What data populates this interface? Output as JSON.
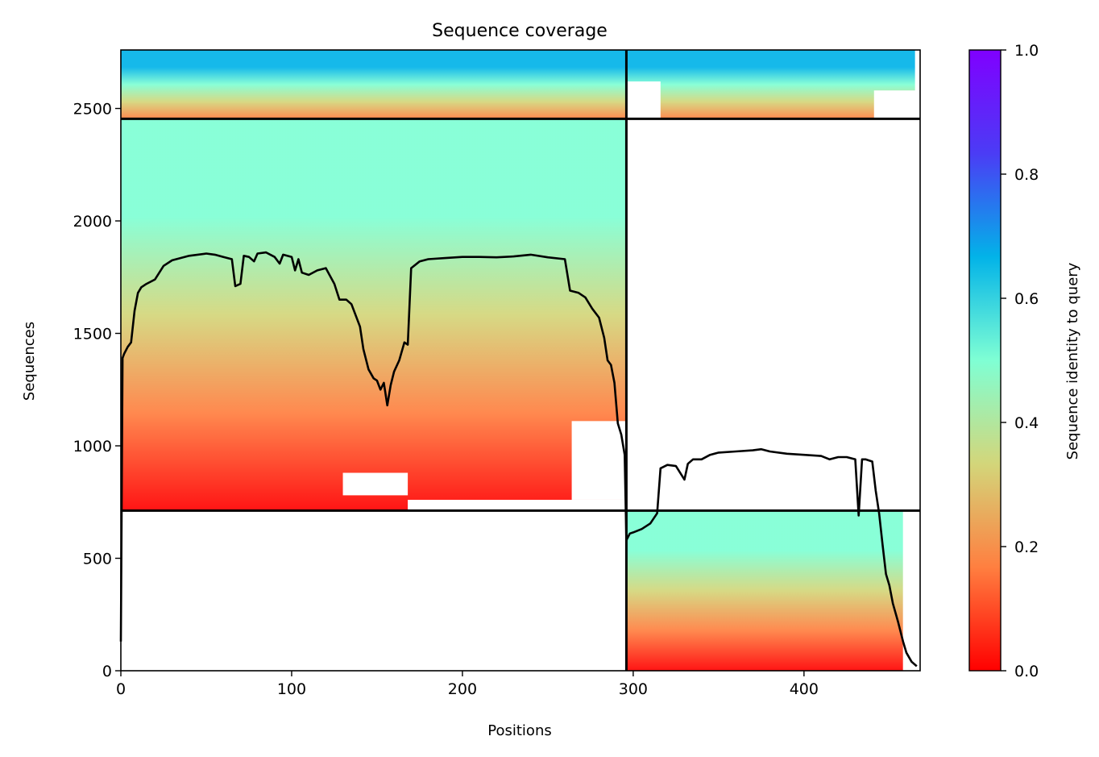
{
  "chart_data": {
    "type": "heatmap",
    "title": "Sequence coverage",
    "xlabel": "Positions",
    "ylabel": "Sequences",
    "xlim": [
      0,
      468
    ],
    "ylim": [
      0,
      2760
    ],
    "x_ticks": [
      0,
      100,
      200,
      300,
      400
    ],
    "y_ticks": [
      0,
      500,
      1000,
      1500,
      2000,
      2500
    ],
    "colormap": "rainbow",
    "colorbar": {
      "label": "Sequence identity to query",
      "range": [
        0.0,
        1.0
      ],
      "ticks": [
        "0.0",
        "0.2",
        "0.4",
        "0.6",
        "0.8",
        "1.0"
      ],
      "stops": [
        "#ff0000",
        "#ff7f40",
        "#d3d67a",
        "#7fffd4",
        "#02b3e8",
        "#4b3cf5",
        "#8000ff"
      ]
    },
    "chain_boundaries": {
      "x": [
        296
      ],
      "y": [
        712,
        2454
      ]
    },
    "blocks": [
      {
        "name": "chain-B-only",
        "x": [
          0,
          296
        ],
        "y": [
          2454,
          2760
        ]
      },
      {
        "name": "chain-B-only-right",
        "x": [
          296,
          468
        ],
        "y": [
          2454,
          2760
        ]
      },
      {
        "name": "chain-A-only",
        "x": [
          0,
          296
        ],
        "y": [
          712,
          2454
        ]
      },
      {
        "name": "chain-B-lower",
        "x": [
          296,
          468
        ],
        "y": [
          0,
          712
        ]
      }
    ],
    "coverage_line": {
      "x": [
        0,
        1,
        2,
        4,
        6,
        8,
        10,
        12,
        15,
        20,
        25,
        30,
        40,
        50,
        55,
        60,
        65,
        67,
        70,
        72,
        75,
        78,
        80,
        85,
        90,
        93,
        95,
        100,
        102,
        104,
        106,
        110,
        115,
        120,
        125,
        128,
        132,
        135,
        140,
        142,
        145,
        148,
        150,
        152,
        154,
        156,
        158,
        160,
        163,
        166,
        168,
        170,
        175,
        180,
        190,
        200,
        210,
        220,
        230,
        240,
        250,
        260,
        263,
        268,
        272,
        276,
        280,
        283,
        285,
        287,
        289,
        291,
        293,
        295,
        296,
        298,
        300,
        305,
        310,
        314,
        316,
        320,
        325,
        330,
        332,
        335,
        340,
        345,
        350,
        360,
        370,
        375,
        380,
        390,
        400,
        410,
        415,
        420,
        425,
        430,
        432,
        434,
        436,
        440,
        442,
        444,
        446,
        448,
        450,
        452,
        455,
        458,
        460,
        463,
        466
      ],
      "y": [
        130,
        1390,
        1410,
        1440,
        1460,
        1600,
        1680,
        1705,
        1720,
        1740,
        1800,
        1825,
        1845,
        1855,
        1850,
        1840,
        1830,
        1710,
        1720,
        1845,
        1840,
        1820,
        1855,
        1860,
        1840,
        1810,
        1850,
        1840,
        1780,
        1830,
        1770,
        1760,
        1780,
        1790,
        1720,
        1650,
        1650,
        1630,
        1530,
        1430,
        1340,
        1300,
        1290,
        1250,
        1280,
        1180,
        1270,
        1330,
        1380,
        1460,
        1450,
        1790,
        1820,
        1830,
        1835,
        1840,
        1840,
        1838,
        1842,
        1850,
        1838,
        1830,
        1690,
        1680,
        1660,
        1610,
        1570,
        1480,
        1380,
        1360,
        1280,
        1100,
        1050,
        960,
        580,
        610,
        615,
        630,
        655,
        700,
        900,
        915,
        910,
        850,
        920,
        940,
        940,
        960,
        970,
        975,
        980,
        985,
        975,
        965,
        960,
        955,
        940,
        950,
        950,
        940,
        690,
        940,
        940,
        930,
        800,
        700,
        560,
        430,
        380,
        300,
        220,
        130,
        80,
        40,
        20
      ]
    }
  }
}
